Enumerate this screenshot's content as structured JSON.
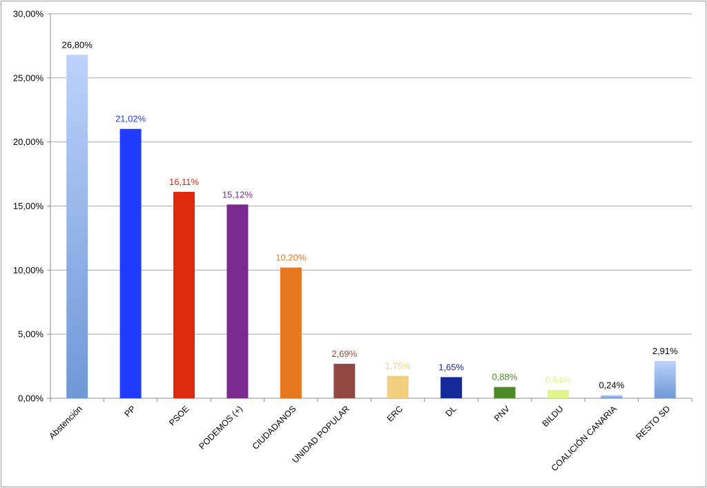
{
  "chart_data": {
    "type": "bar",
    "title": "",
    "xlabel": "",
    "ylabel": "",
    "ylim": [
      0,
      30
    ],
    "ytick_step": 5,
    "ytick_labels": [
      "0,00%",
      "5,00%",
      "10,00%",
      "15,00%",
      "20,00%",
      "25,00%",
      "30,00%"
    ],
    "grid": true,
    "legend": "none",
    "categories": [
      "Abstención",
      "PP",
      "PSOE",
      "PODEMOS (+)",
      "CIUDADANOS",
      "UNIDAD POPULAR",
      "ERC",
      "DL",
      "PNV",
      "BILDU",
      "COALICIÓN CANARIA",
      "RESTO SD"
    ],
    "values": [
      26.8,
      21.02,
      16.11,
      15.12,
      10.2,
      2.69,
      1.75,
      1.65,
      0.88,
      0.64,
      0.24,
      2.91
    ],
    "data_labels": [
      "26,80%",
      "21,02%",
      "16,11%",
      "15,12%",
      "10,20%",
      "2,69%",
      "1,75%",
      "1,65%",
      "0,88%",
      "0,64%",
      "0,24%",
      "2,91%"
    ],
    "bar_colors": [
      "#8fb1e8",
      "#1f3cff",
      "#e02a10",
      "#7b2a8e",
      "#e6771e",
      "#944844",
      "#f2cf7e",
      "#142a9a",
      "#4c8a25",
      "#dff58a",
      "#8fb1e8",
      "#8fb1e8"
    ],
    "gradient_bars": [
      true,
      false,
      false,
      false,
      false,
      false,
      false,
      false,
      false,
      false,
      true,
      true
    ],
    "label_colors": [
      "#000000",
      "#1f3cff",
      "#e02a10",
      "#7b2a8e",
      "#e6771e",
      "#944844",
      "#f2cf7e",
      "#142a9a",
      "#4c8a25",
      "#dff58a",
      "#000000",
      "#000000"
    ]
  }
}
